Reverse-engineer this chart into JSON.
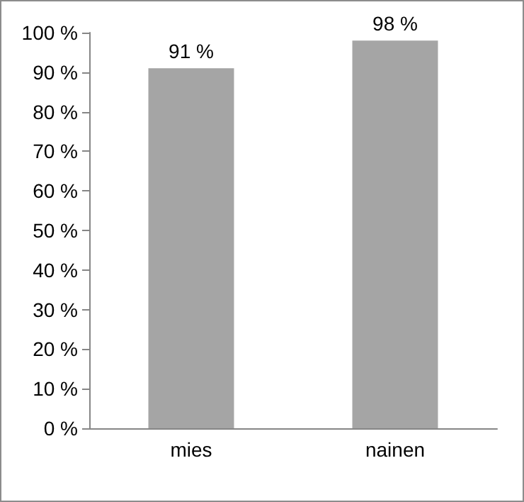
{
  "chart_data": {
    "type": "bar",
    "categories": [
      "mies",
      "nainen"
    ],
    "values": [
      91,
      98
    ],
    "color": "#a5a5a5",
    "value_labels": [
      "91 %",
      "98 %"
    ],
    "ylim": [
      0,
      100
    ],
    "yticks": [
      {
        "value": 0,
        "label": "0 %"
      },
      {
        "value": 10,
        "label": "10 %"
      },
      {
        "value": 20,
        "label": "20 %"
      },
      {
        "value": 30,
        "label": "30 %"
      },
      {
        "value": 40,
        "label": "40 %"
      },
      {
        "value": 50,
        "label": "50 %"
      },
      {
        "value": 60,
        "label": "60 %"
      },
      {
        "value": 70,
        "label": "70 %"
      },
      {
        "value": 80,
        "label": "80 %"
      },
      {
        "value": 90,
        "label": "90 %"
      },
      {
        "value": 100,
        "label": "100 %"
      }
    ],
    "grid": false
  }
}
